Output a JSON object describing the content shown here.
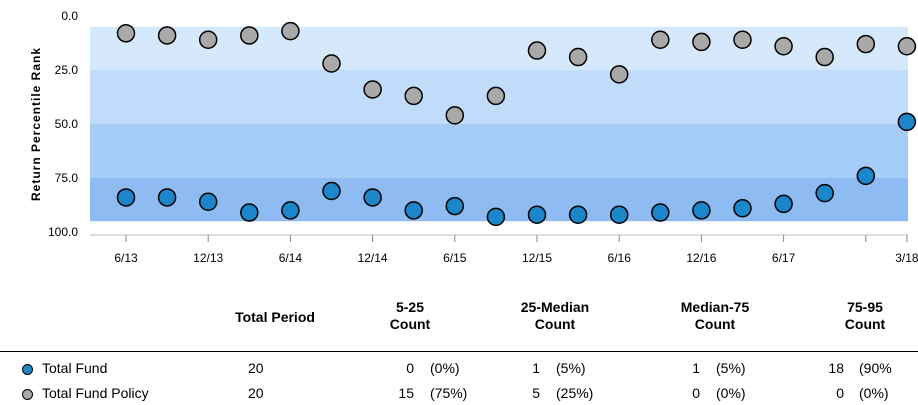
{
  "chart_data": {
    "type": "scatter",
    "ylabel": "Return Percentile Rank",
    "y_ticks": [
      "0.0",
      "25.0",
      "50.0",
      "75.0",
      "100.0"
    ],
    "ylim": [
      0,
      100
    ],
    "y_inverted": true,
    "x_tick_labels": [
      {
        "label": "6/13",
        "index": 0
      },
      {
        "label": "12/13",
        "index": 2
      },
      {
        "label": "6/14",
        "index": 4
      },
      {
        "label": "12/14",
        "index": 6
      },
      {
        "label": "6/15",
        "index": 8
      },
      {
        "label": "12/15",
        "index": 10
      },
      {
        "label": "6/16",
        "index": 12
      },
      {
        "label": "12/16",
        "index": 14
      },
      {
        "label": "6/17",
        "index": 16
      },
      {
        "label": "3/18",
        "index": 19
      }
    ],
    "bands": [
      {
        "from": 5,
        "to": 25,
        "color": "#d6e8fb"
      },
      {
        "from": 25,
        "to": 50,
        "color": "#c0dcfa"
      },
      {
        "from": 50,
        "to": 75,
        "color": "#a5cdf8"
      },
      {
        "from": 75,
        "to": 95,
        "color": "#8ebcf2"
      }
    ],
    "series": [
      {
        "name": "Total Fund",
        "color": "#1b86c9",
        "values": [
          84,
          84,
          86,
          91,
          90,
          81,
          84,
          90,
          88,
          93,
          92,
          92,
          92,
          91,
          90,
          89,
          87,
          82,
          74,
          49
        ]
      },
      {
        "name": "Total Fund Policy",
        "color": "#a9a9a9",
        "values": [
          8,
          9,
          11,
          9,
          7,
          22,
          34,
          37,
          46,
          37,
          16,
          19,
          27,
          11,
          12,
          11,
          14,
          19,
          13,
          14
        ]
      }
    ]
  },
  "summary": {
    "headers": {
      "total_period": "Total Period",
      "c1_line1": "5-25",
      "c1_line2": "Count",
      "c2_line1": "25-Median",
      "c2_line2": "Count",
      "c3_line1": "Median-75",
      "c3_line2": "Count",
      "c4_line1": "75-95",
      "c4_line2": "Count"
    },
    "rows": [
      {
        "name": "Total Fund",
        "color": "#1b86c9",
        "total": "20",
        "c1": "0",
        "p1": "(0%)",
        "c2": "1",
        "p2": "(5%)",
        "c3": "1",
        "p3": "(5%)",
        "c4": "18",
        "p4": "(90%"
      },
      {
        "name": "Total Fund Policy",
        "color": "#a9a9a9",
        "total": "20",
        "c1": "15",
        "p1": "(75%)",
        "c2": "5",
        "p2": "(25%)",
        "c3": "0",
        "p3": "(0%)",
        "c4": "0",
        "p4": "(0%)"
      }
    ]
  }
}
